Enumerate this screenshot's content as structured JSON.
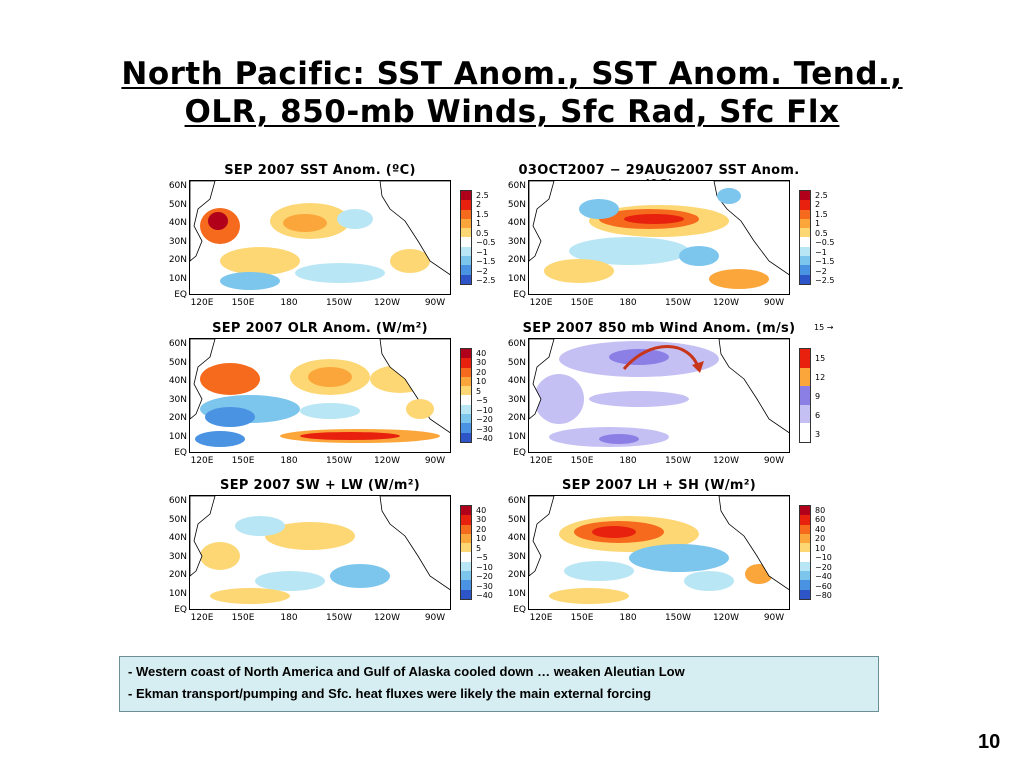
{
  "slide": {
    "title_line1": "North Pacific: SST Anom., SST Anom. Tend.,",
    "title_line2": "OLR, 850-mb Winds, Sfc Rad, Sfc Flx",
    "page_number": "10"
  },
  "axes": {
    "lat_labels": [
      "60N",
      "50N",
      "40N",
      "30N",
      "20N",
      "10N",
      "EQ"
    ],
    "lon_labels": [
      "120E",
      "150E",
      "180",
      "150W",
      "120W",
      "90W"
    ]
  },
  "panels": [
    {
      "title": "SEP 2007 SST Anom. (ºC)",
      "colorbar_labels": [
        "2.5",
        "2",
        "1.5",
        "1",
        "0.5",
        "−0.5",
        "−1",
        "−1.5",
        "−2",
        "−2.5"
      ],
      "colors": [
        "#b0001a",
        "#e8200e",
        "#f56a1c",
        "#fba63a",
        "#fdd774",
        "#ffffff",
        "#b9e6f4",
        "#7cc5ec",
        "#4a92e2",
        "#2e55c8"
      ]
    },
    {
      "title": "03OCT2007 − 29AUG2007 SST Anom. (ºC)",
      "colorbar_labels": [
        "2.5",
        "2",
        "1.5",
        "1",
        "0.5",
        "−0.5",
        "−1",
        "−1.5",
        "−2",
        "−2.5"
      ],
      "colors": [
        "#b0001a",
        "#e8200e",
        "#f56a1c",
        "#fba63a",
        "#fdd774",
        "#ffffff",
        "#b9e6f4",
        "#7cc5ec",
        "#4a92e2",
        "#2e55c8"
      ]
    },
    {
      "title": "SEP 2007 OLR Anom. (W/m²)",
      "colorbar_labels": [
        "40",
        "30",
        "20",
        "10",
        "5",
        "−5",
        "−10",
        "−20",
        "−30",
        "−40"
      ],
      "colors": [
        "#b0001a",
        "#e8200e",
        "#f56a1c",
        "#fba63a",
        "#fdd774",
        "#ffffff",
        "#b9e6f4",
        "#7cc5ec",
        "#4a92e2",
        "#2e55c8"
      ]
    },
    {
      "title": "SEP 2007 850 mb Wind Anom. (m/s)",
      "vector_ref": "15",
      "colorbar_labels": [
        "15",
        "12",
        "9",
        "6",
        "3"
      ],
      "colors": [
        "#e8200e",
        "#fba63a",
        "#8b7fe6",
        "#c4c0f4",
        "#ffffff"
      ]
    },
    {
      "title": "SEP 2007 SW + LW (W/m²)",
      "colorbar_labels": [
        "40",
        "30",
        "20",
        "10",
        "5",
        "−5",
        "−10",
        "−20",
        "−30",
        "−40"
      ],
      "colors": [
        "#b0001a",
        "#e8200e",
        "#f56a1c",
        "#fba63a",
        "#fdd774",
        "#ffffff",
        "#b9e6f4",
        "#7cc5ec",
        "#4a92e2",
        "#2e55c8"
      ]
    },
    {
      "title": "SEP 2007 LH + SH (W/m²)",
      "colorbar_labels": [
        "80",
        "60",
        "40",
        "20",
        "10",
        "−10",
        "−20",
        "−40",
        "−60",
        "−80"
      ],
      "colors": [
        "#b0001a",
        "#e8200e",
        "#f56a1c",
        "#fba63a",
        "#fdd774",
        "#ffffff",
        "#b9e6f4",
        "#7cc5ec",
        "#4a92e2",
        "#2e55c8"
      ]
    }
  ],
  "notes": [
    "- Western coast of North America and Gulf of Alaska cooled down … weaken Aleutian Low",
    "- Ekman transport/pumping and Sfc. heat fluxes were likely the main external forcing"
  ]
}
